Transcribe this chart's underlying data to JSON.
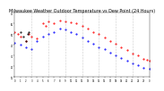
{
  "title": "Milwaukee Weather Outdoor Temperature vs Dew Point (24 Hours)",
  "title_fontsize": 3.5,
  "background_color": "#ffffff",
  "grid_color": "#888888",
  "xlim": [
    0,
    24
  ],
  "ylim": [
    10,
    70
  ],
  "temp_color": "#ff0000",
  "dew_color": "#0000ff",
  "black_color": "#000000",
  "temp_data": [
    [
      0,
      52
    ],
    [
      0.5,
      50
    ],
    [
      1,
      48
    ],
    [
      2,
      44
    ],
    [
      2.5,
      50
    ],
    [
      3,
      48
    ],
    [
      4,
      46
    ],
    [
      5,
      60
    ],
    [
      5.5,
      58
    ],
    [
      6,
      62
    ],
    [
      7,
      60
    ],
    [
      8,
      63
    ],
    [
      9,
      62
    ],
    [
      10,
      61
    ],
    [
      11,
      60
    ],
    [
      12,
      58
    ],
    [
      13,
      55
    ],
    [
      14,
      52
    ],
    [
      15,
      50
    ],
    [
      16,
      47
    ],
    [
      17,
      44
    ],
    [
      18,
      41
    ],
    [
      19,
      38
    ],
    [
      20,
      35
    ],
    [
      21,
      32
    ],
    [
      22,
      30
    ],
    [
      23,
      27
    ],
    [
      23.5,
      26
    ],
    [
      24,
      25
    ]
  ],
  "dew_data": [
    [
      0,
      42
    ],
    [
      1,
      40
    ],
    [
      2,
      38
    ],
    [
      3,
      36
    ],
    [
      4,
      44
    ],
    [
      5,
      48
    ],
    [
      6,
      50
    ],
    [
      7,
      52
    ],
    [
      8,
      55
    ],
    [
      9,
      54
    ],
    [
      10,
      52
    ],
    [
      11,
      50
    ],
    [
      12,
      47
    ],
    [
      13,
      44
    ],
    [
      14,
      41
    ],
    [
      15,
      38
    ],
    [
      16,
      36
    ],
    [
      17,
      33
    ],
    [
      18,
      30
    ],
    [
      19,
      28
    ],
    [
      20,
      25
    ],
    [
      21,
      23
    ],
    [
      22,
      21
    ],
    [
      23,
      19
    ],
    [
      24,
      18
    ]
  ],
  "black_data": [
    [
      1,
      52
    ],
    [
      1.5,
      48
    ],
    [
      2,
      44
    ],
    [
      2.3,
      50
    ],
    [
      2.5,
      52
    ]
  ],
  "xtick_positions": [
    0,
    1,
    2,
    3,
    4,
    5,
    6,
    7,
    8,
    9,
    10,
    11,
    12,
    13,
    14,
    15,
    16,
    17,
    18,
    19,
    20,
    21,
    22,
    23,
    24
  ],
  "xtick_labels": [
    "0",
    "1",
    "2",
    "3",
    "4",
    "5",
    "6",
    "7",
    "8",
    "9",
    "10",
    "11",
    "12",
    "13",
    "14",
    "15",
    "16",
    "17",
    "18",
    "19",
    "20",
    "21",
    "22",
    "23",
    "0"
  ],
  "ytick_positions": [
    10,
    20,
    30,
    40,
    50,
    60,
    70
  ],
  "ytick_labels": [
    "10",
    "20",
    "30",
    "40",
    "50",
    "60",
    "70"
  ],
  "vgrid_positions": [
    3,
    6,
    9,
    12,
    15,
    18,
    21,
    24
  ]
}
